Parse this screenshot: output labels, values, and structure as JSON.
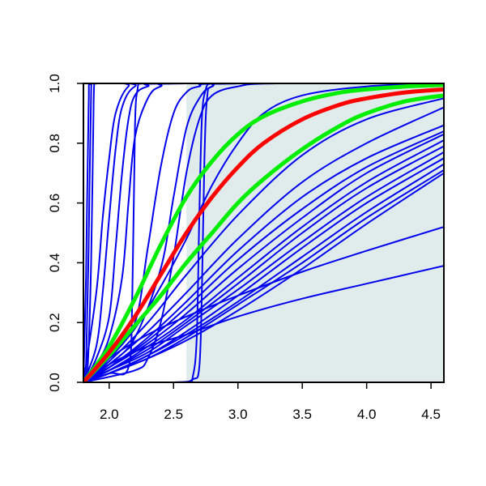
{
  "chart_data": {
    "type": "line",
    "title": "",
    "xlabel": "",
    "ylabel": "",
    "xlim": [
      1.8,
      4.6
    ],
    "ylim": [
      0.0,
      1.0
    ],
    "x_ticks": [
      "2.0",
      "2.5",
      "3.0",
      "3.5",
      "4.0",
      "4.5"
    ],
    "y_ticks": [
      "0.0",
      "0.2",
      "0.4",
      "0.6",
      "0.8",
      "1.0"
    ],
    "grid": false,
    "legend": "none",
    "shaded_region": {
      "x_from": 2.6,
      "x_to": 4.6,
      "color": "#e0ecec"
    },
    "colors": {
      "blue": "#0000ee",
      "red": "#ff0000",
      "green": "#00ee00",
      "axis": "#000000"
    },
    "series_style": {
      "blue": {
        "width": 2
      },
      "red": {
        "width": 5
      },
      "green": {
        "width": 5
      }
    },
    "series": [
      {
        "color": "blue",
        "x": [
          1.8,
          1.82,
          1.84,
          1.86,
          1.88,
          2.0,
          4.6
        ],
        "y": [
          0,
          0.05,
          0.45,
          0.97,
          1.0,
          1.0,
          1.0
        ]
      },
      {
        "color": "blue",
        "x": [
          1.8,
          1.83,
          1.86,
          1.88,
          1.9,
          2.0,
          4.6
        ],
        "y": [
          0,
          0.03,
          0.4,
          0.95,
          1.0,
          1.0,
          1.0
        ]
      },
      {
        "color": "blue",
        "x": [
          1.8,
          1.82,
          1.84,
          1.86,
          2.0,
          4.6
        ],
        "y": [
          0,
          0.35,
          0.92,
          1.0,
          1.0,
          1.0
        ]
      },
      {
        "color": "blue",
        "x": [
          1.8,
          1.9,
          1.95,
          2.0,
          2.05,
          2.15,
          2.3,
          4.6
        ],
        "y": [
          0,
          0.3,
          0.55,
          0.75,
          0.9,
          0.99,
          1.0,
          1.0
        ]
      },
      {
        "color": "blue",
        "x": [
          1.8,
          1.9,
          1.95,
          2.0,
          2.05,
          2.1,
          2.2,
          2.4,
          4.6
        ],
        "y": [
          0,
          0.12,
          0.3,
          0.55,
          0.78,
          0.92,
          0.99,
          1.0,
          1.0
        ]
      },
      {
        "color": "blue",
        "x": [
          1.8,
          1.9,
          2.0,
          2.05,
          2.1,
          2.15,
          2.2,
          2.3,
          2.5,
          4.6
        ],
        "y": [
          0,
          0.08,
          0.22,
          0.45,
          0.7,
          0.88,
          0.96,
          0.99,
          1.0,
          1.0
        ]
      },
      {
        "color": "blue",
        "x": [
          1.8,
          1.9,
          2.0,
          2.1,
          2.15,
          2.2,
          2.3,
          2.4,
          2.6,
          4.6
        ],
        "y": [
          0,
          0.06,
          0.15,
          0.35,
          0.6,
          0.82,
          0.95,
          0.99,
          1.0,
          1.0
        ]
      },
      {
        "color": "blue",
        "x": [
          1.8,
          2.0,
          2.15,
          2.18,
          2.2,
          2.22,
          2.25,
          2.4,
          4.6
        ],
        "y": [
          0,
          0.03,
          0.05,
          0.3,
          0.85,
          0.98,
          1.0,
          1.0,
          1.0
        ]
      },
      {
        "color": "blue",
        "x": [
          1.8,
          2.0,
          2.2,
          2.3,
          2.4,
          2.5,
          2.6,
          2.7,
          2.9,
          4.6
        ],
        "y": [
          0,
          0.08,
          0.2,
          0.45,
          0.72,
          0.9,
          0.97,
          0.99,
          1.0,
          1.0
        ]
      },
      {
        "color": "blue",
        "x": [
          1.8,
          2.0,
          2.2,
          2.4,
          2.5,
          2.6,
          2.7,
          2.8,
          3.0,
          4.6
        ],
        "y": [
          0,
          0.06,
          0.15,
          0.38,
          0.62,
          0.85,
          0.95,
          0.99,
          1.0,
          1.0
        ]
      },
      {
        "color": "blue",
        "x": [
          1.8,
          2.2,
          2.3,
          2.4,
          2.5,
          2.6,
          2.7,
          2.8,
          3.0,
          3.3,
          4.6
        ],
        "y": [
          0,
          0.04,
          0.08,
          0.2,
          0.42,
          0.7,
          0.88,
          0.96,
          0.99,
          1.0,
          1.0
        ]
      },
      {
        "color": "blue",
        "x": [
          1.8,
          2.3,
          2.6,
          2.65,
          2.68,
          2.7,
          2.72,
          2.75,
          2.8,
          3.0,
          4.6
        ],
        "y": [
          0,
          0.0,
          0.0,
          0.02,
          0.15,
          0.55,
          0.88,
          0.98,
          1.0,
          1.0,
          1.0
        ]
      },
      {
        "color": "blue",
        "x": [
          1.8,
          2.5,
          2.65,
          2.7,
          2.72,
          2.74,
          2.76,
          2.8,
          3.0,
          4.6
        ],
        "y": [
          0,
          0.0,
          0.01,
          0.05,
          0.3,
          0.75,
          0.95,
          0.99,
          1.0,
          1.0
        ]
      },
      {
        "color": "blue",
        "x": [
          1.8,
          2.0,
          2.2,
          2.4,
          2.6,
          2.8,
          3.0,
          3.2,
          3.5,
          4.0,
          4.6
        ],
        "y": [
          0,
          0.08,
          0.18,
          0.32,
          0.48,
          0.66,
          0.8,
          0.9,
          0.96,
          0.99,
          1.0
        ]
      },
      {
        "color": "blue",
        "x": [
          1.8,
          2.0,
          2.3,
          2.6,
          3.0,
          3.5,
          4.0,
          4.6
        ],
        "y": [
          0,
          0.07,
          0.2,
          0.36,
          0.56,
          0.76,
          0.88,
          0.95
        ]
      },
      {
        "color": "blue",
        "x": [
          1.8,
          2.0,
          2.3,
          2.6,
          3.0,
          3.5,
          4.0,
          4.6
        ],
        "y": [
          0,
          0.06,
          0.17,
          0.3,
          0.48,
          0.67,
          0.8,
          0.92
        ]
      },
      {
        "color": "blue",
        "x": [
          1.8,
          2.0,
          2.3,
          2.6,
          3.0,
          3.5,
          4.0,
          4.6
        ],
        "y": [
          0,
          0.05,
          0.15,
          0.27,
          0.44,
          0.62,
          0.75,
          0.86
        ]
      },
      {
        "color": "blue",
        "x": [
          1.8,
          2.0,
          2.3,
          2.6,
          3.0,
          3.5,
          4.0,
          4.6
        ],
        "y": [
          0,
          0.05,
          0.14,
          0.25,
          0.41,
          0.58,
          0.72,
          0.84
        ]
      },
      {
        "color": "blue",
        "x": [
          1.8,
          2.0,
          2.3,
          2.6,
          3.0,
          3.5,
          4.0,
          4.6
        ],
        "y": [
          0,
          0.05,
          0.13,
          0.23,
          0.38,
          0.55,
          0.7,
          0.83
        ]
      },
      {
        "color": "blue",
        "x": [
          1.8,
          2.0,
          2.3,
          2.6,
          3.0,
          3.5,
          4.0,
          4.6
        ],
        "y": [
          0,
          0.04,
          0.12,
          0.21,
          0.35,
          0.52,
          0.67,
          0.81
        ]
      },
      {
        "color": "blue",
        "x": [
          1.8,
          2.0,
          2.3,
          2.6,
          3.0,
          3.5,
          4.0,
          4.6
        ],
        "y": [
          0,
          0.04,
          0.11,
          0.2,
          0.33,
          0.5,
          0.65,
          0.79
        ]
      },
      {
        "color": "blue",
        "x": [
          1.8,
          2.0,
          2.3,
          2.6,
          3.0,
          3.5,
          4.0,
          4.6
        ],
        "y": [
          0,
          0.04,
          0.1,
          0.19,
          0.31,
          0.47,
          0.62,
          0.77
        ]
      },
      {
        "color": "blue",
        "x": [
          1.8,
          2.0,
          2.3,
          2.6,
          3.0,
          3.5,
          4.0,
          4.6
        ],
        "y": [
          0,
          0.03,
          0.09,
          0.17,
          0.29,
          0.45,
          0.6,
          0.75
        ]
      },
      {
        "color": "blue",
        "x": [
          1.8,
          2.0,
          2.3,
          2.6,
          3.0,
          3.5,
          4.0,
          4.6
        ],
        "y": [
          0,
          0.03,
          0.09,
          0.16,
          0.27,
          0.42,
          0.57,
          0.73
        ]
      },
      {
        "color": "blue",
        "x": [
          1.8,
          2.0,
          2.3,
          2.6,
          3.0,
          3.5,
          4.0,
          4.6
        ],
        "y": [
          0,
          0.03,
          0.08,
          0.15,
          0.26,
          0.4,
          0.55,
          0.71
        ]
      },
      {
        "color": "blue",
        "x": [
          1.8,
          2.0,
          2.3,
          2.6,
          3.0,
          3.5,
          4.0,
          4.6
        ],
        "y": [
          0,
          0.03,
          0.08,
          0.14,
          0.24,
          0.38,
          0.53,
          0.7
        ]
      },
      {
        "color": "blue",
        "x": [
          1.8,
          2.0,
          2.3,
          2.6,
          3.0,
          3.5,
          4.0,
          4.6
        ],
        "y": [
          0,
          0.08,
          0.16,
          0.22,
          0.29,
          0.37,
          0.44,
          0.52
        ]
      },
      {
        "color": "blue",
        "x": [
          1.8,
          2.0,
          2.3,
          2.6,
          3.0,
          3.5,
          4.0,
          4.6
        ],
        "y": [
          0,
          0.06,
          0.12,
          0.16,
          0.22,
          0.28,
          0.33,
          0.39
        ]
      },
      {
        "color": "red",
        "x": [
          1.8,
          2.0,
          2.2,
          2.4,
          2.6,
          2.8,
          3.0,
          3.2,
          3.5,
          3.8,
          4.0,
          4.3,
          4.6
        ],
        "y": [
          0,
          0.1,
          0.22,
          0.36,
          0.5,
          0.62,
          0.72,
          0.8,
          0.88,
          0.93,
          0.95,
          0.97,
          0.98
        ]
      },
      {
        "color": "green",
        "x": [
          1.8,
          2.0,
          2.2,
          2.4,
          2.6,
          2.8,
          3.0,
          3.2,
          3.5,
          3.8,
          4.0,
          4.3,
          4.6
        ],
        "y": [
          0,
          0.12,
          0.28,
          0.46,
          0.62,
          0.74,
          0.83,
          0.89,
          0.94,
          0.97,
          0.98,
          0.99,
          0.995
        ]
      },
      {
        "color": "green",
        "x": [
          1.8,
          2.0,
          2.2,
          2.4,
          2.6,
          2.8,
          3.0,
          3.2,
          3.5,
          3.8,
          4.0,
          4.3,
          4.6
        ],
        "y": [
          0,
          0.09,
          0.19,
          0.29,
          0.4,
          0.5,
          0.6,
          0.68,
          0.78,
          0.86,
          0.9,
          0.94,
          0.96
        ]
      }
    ]
  }
}
